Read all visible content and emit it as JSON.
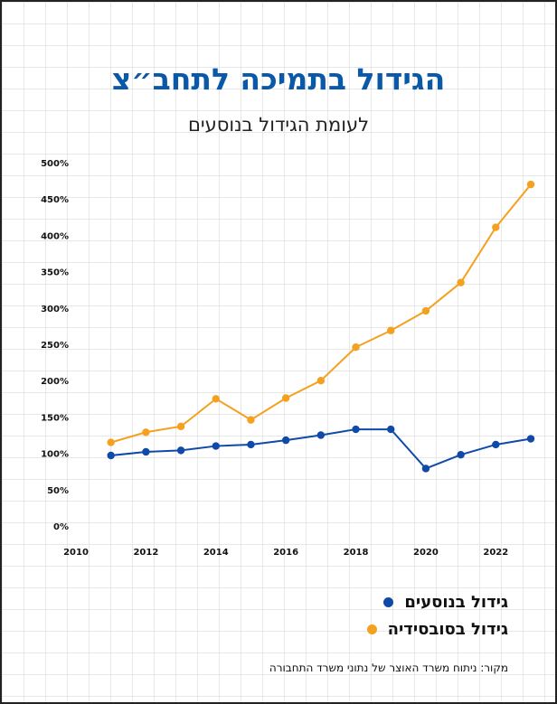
{
  "title": "הגידול בתמיכה לתחב״צ",
  "subtitle": "לעומת הגידול בנוסעים",
  "source": "מקור: ניתוח משרד האוצר של נתוני משרד התחבורה",
  "colors": {
    "title": "#0a58a8",
    "passengers": "#0f4aa8",
    "subsidy": "#f5a01f"
  },
  "chart_data": {
    "type": "line",
    "x": [
      2011,
      2012,
      2013,
      2014,
      2015,
      2016,
      2017,
      2018,
      2019,
      2020,
      2021,
      2022,
      2023
    ],
    "series": [
      {
        "name": "גידול בנוסעים",
        "values": [
          97,
          102,
          104,
          110,
          112,
          118,
          125,
          133,
          133,
          79,
          98,
          112,
          120
        ]
      },
      {
        "name": "גידול בסובסידיה",
        "values": [
          115,
          129,
          137,
          175,
          146,
          176,
          200,
          246,
          269,
          296,
          335,
          411,
          470
        ]
      }
    ],
    "xticks": [
      "2010",
      "2012",
      "2014",
      "2016",
      "2018",
      "2020",
      "2022"
    ],
    "yticks": [
      "0%",
      "50%",
      "100%",
      "150%",
      "200%",
      "250%",
      "300%",
      "350%",
      "400%",
      "450%",
      "500%"
    ],
    "xlim": [
      2010,
      2023
    ],
    "ylim": [
      0,
      500
    ],
    "grid": true,
    "legend": "bottom-right"
  }
}
